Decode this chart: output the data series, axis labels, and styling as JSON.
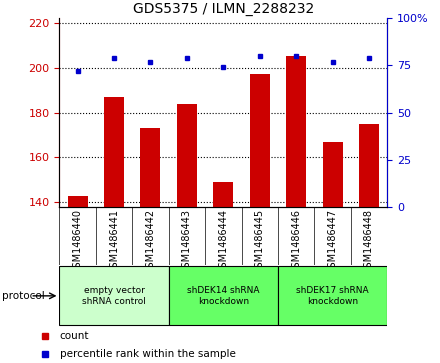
{
  "title": "GDS5375 / ILMN_2288232",
  "samples": [
    "GSM1486440",
    "GSM1486441",
    "GSM1486442",
    "GSM1486443",
    "GSM1486444",
    "GSM1486445",
    "GSM1486446",
    "GSM1486447",
    "GSM1486448"
  ],
  "counts": [
    143,
    187,
    173,
    184,
    149,
    197,
    205,
    167,
    175
  ],
  "percentile_ranks": [
    72,
    79,
    77,
    79,
    74,
    80,
    80,
    77,
    79
  ],
  "ylim_left": [
    138,
    222
  ],
  "ylim_right": [
    0,
    100
  ],
  "yticks_left": [
    140,
    160,
    180,
    200,
    220
  ],
  "yticks_right": [
    0,
    25,
    50,
    75,
    100
  ],
  "bar_color": "#cc0000",
  "dot_color": "#0000cc",
  "bar_bottom": 138,
  "groups": [
    {
      "label": "empty vector\nshRNA control",
      "start": 0,
      "end": 3,
      "color": "#ccffcc"
    },
    {
      "label": "shDEK14 shRNA\nknockdown",
      "start": 3,
      "end": 6,
      "color": "#66ff66"
    },
    {
      "label": "shDEK17 shRNA\nknockdown",
      "start": 6,
      "end": 9,
      "color": "#66ff66"
    }
  ],
  "protocol_label": "protocol",
  "legend_count_label": "count",
  "legend_percentile_label": "percentile rank within the sample",
  "left_axis_color": "#cc0000",
  "right_axis_color": "#0000cc",
  "xtick_bg_color": "#d3d3d3",
  "title_fontsize": 10,
  "tick_fontsize": 8,
  "label_fontsize": 7,
  "legend_fontsize": 7.5
}
